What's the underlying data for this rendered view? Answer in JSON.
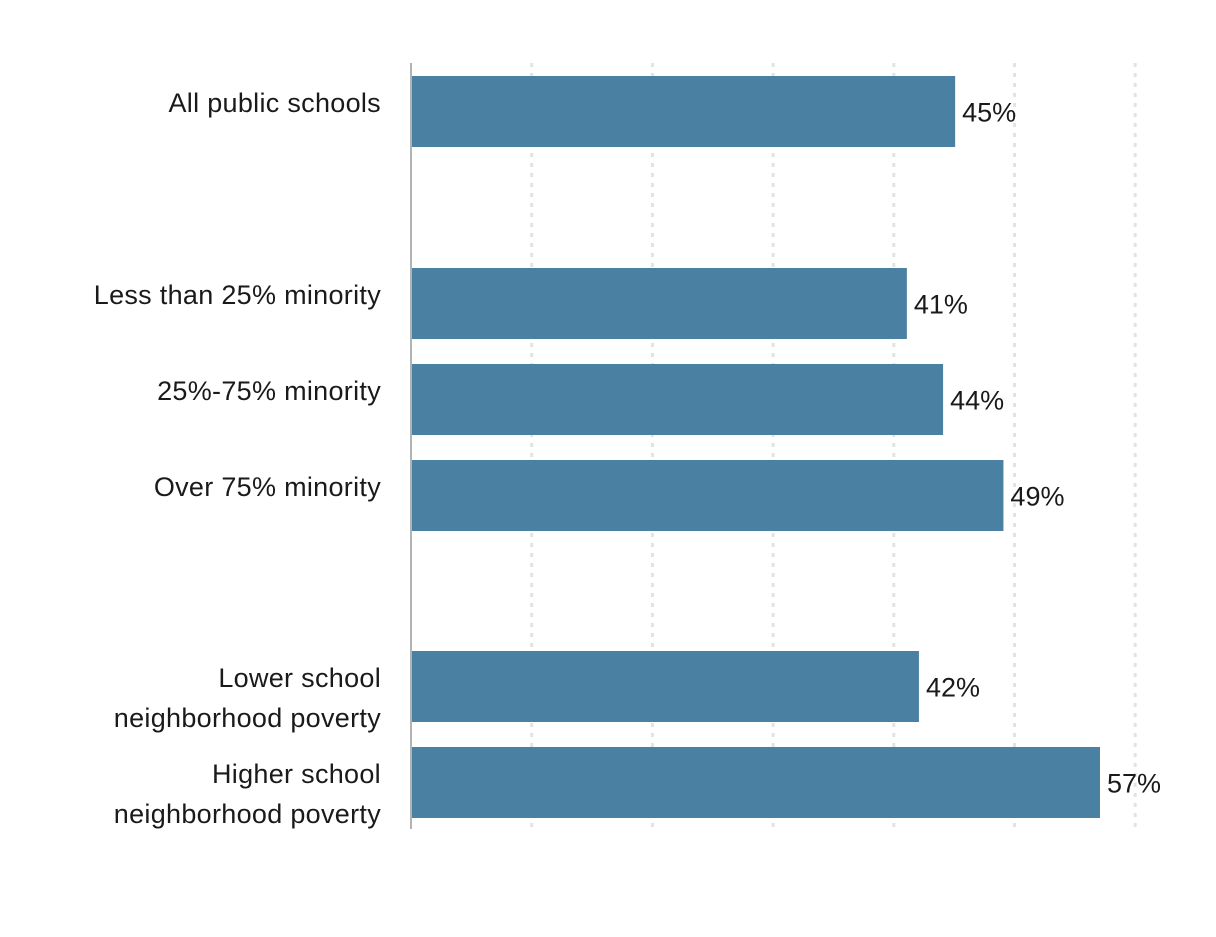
{
  "chart_data": {
    "type": "bar",
    "orientation": "horizontal",
    "title": "",
    "xlabel": "",
    "ylabel": "",
    "categories": [
      [
        "All public schools"
      ],
      [
        "Less than 25% minority"
      ],
      [
        "25%-75% minority"
      ],
      [
        "Over 75% minority"
      ],
      [
        "Lower school",
        "neighborhood poverty"
      ],
      [
        "Higher school",
        "neighborhood poverty"
      ]
    ],
    "values": [
      45,
      41,
      44,
      49,
      42,
      57
    ],
    "value_labels": [
      "45%",
      "41%",
      "44%",
      "49%",
      "42%",
      "57%"
    ],
    "groups": [
      [
        0
      ],
      [
        1,
        2,
        3
      ],
      [
        4,
        5
      ]
    ],
    "xlim": [
      0,
      60
    ],
    "grid": "vertical dotted",
    "tick_labels_shown": false,
    "colors": {
      "bar": "#4a80a1",
      "grid": "#e3e3e3",
      "axis": "#b3b3b3",
      "text": "#1a1a1a"
    }
  }
}
